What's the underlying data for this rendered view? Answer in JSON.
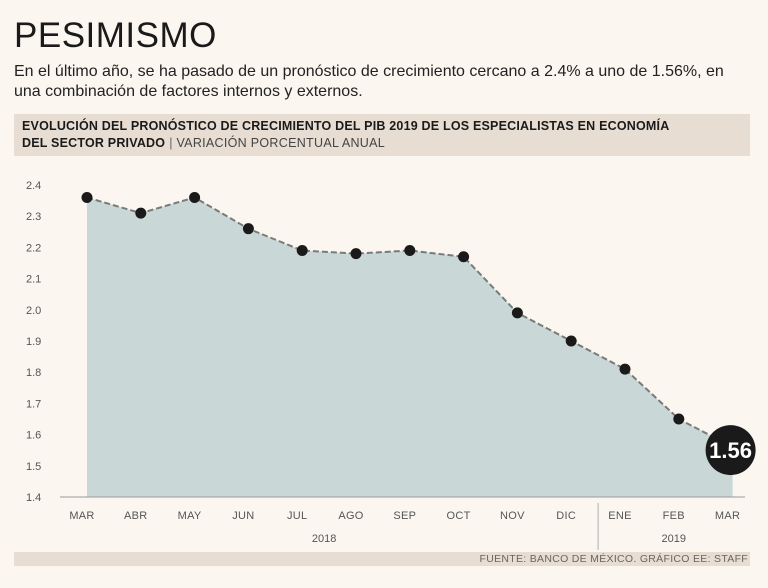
{
  "header": {
    "title": "PESIMISMO",
    "subtitle": "En el último año, se ha pasado de un pronóstico de crecimiento cercano a 2.4% a uno de 1.56%, en una combinación de factores internos y externos."
  },
  "chart_header": {
    "line1": "EVOLUCIÓN DEL PRONÓSTICO DE CRECIMIENTO DEL PIB 2019 DE LOS ESPECIALISTAS EN ECONOMÍA",
    "line2_bold": "DEL SECTOR PRIVADO",
    "separator": "|",
    "line2_sub": "VARIACIÓN PORCENTUAL ANUAL"
  },
  "chart_data": {
    "type": "area",
    "title": "EVOLUCIÓN DEL PRONÓSTICO DE CRECIMIENTO DEL PIB 2019 DE LOS ESPECIALISTAS EN ECONOMÍA DEL SECTOR PRIVADO",
    "ylabel": "VARIACIÓN PORCENTUAL ANUAL",
    "categories": [
      "MAR",
      "ABR",
      "MAY",
      "JUN",
      "JUL",
      "AGO",
      "SEP",
      "OCT",
      "NOV",
      "DIC",
      "ENE",
      "FEB",
      "MAR"
    ],
    "values": [
      2.36,
      2.31,
      2.36,
      2.26,
      2.19,
      2.18,
      2.19,
      2.17,
      1.99,
      1.9,
      1.81,
      1.65,
      1.56
    ],
    "year_groups": [
      {
        "label": "2018",
        "start": 0,
        "end": 9
      },
      {
        "label": "2019",
        "start": 10,
        "end": 12
      }
    ],
    "ylim": [
      1.4,
      2.4
    ],
    "yticks": [
      "1.4",
      "1.5",
      "1.6",
      "1.7",
      "1.8",
      "1.9",
      "2.0",
      "2.1",
      "2.2",
      "2.3",
      "2.4"
    ],
    "highlight_label": "1.56",
    "colors": {
      "fill": "#c9d8d7",
      "line": "#7a7a7a",
      "point": "#1a1a1a",
      "highlight_text": "#ffffff"
    }
  },
  "source": "FUENTE: BANCO DE MÉXICO. GRÁFICO EE: STAFF"
}
